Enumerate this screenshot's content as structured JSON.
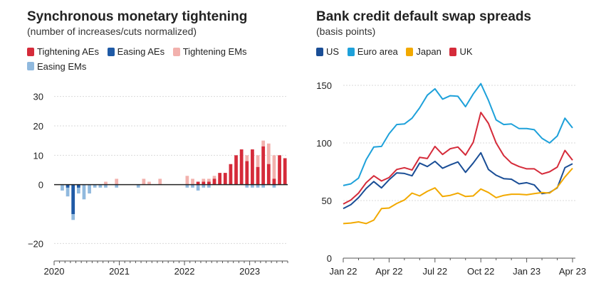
{
  "chart_data": [
    {
      "type": "bar",
      "title": "Synchronous monetary tightening",
      "subtitle": "(number of increases/cuts normalized)",
      "legend": [
        "Tightening AEs",
        "Easing AEs",
        "Tightening EMs",
        "Easing EMs"
      ],
      "colors": {
        "Tightening AEs": "#d52b3a",
        "Easing AEs": "#1f5aa6",
        "Tightening EMs": "#f2b1ad",
        "Easing EMs": "#90b9de"
      },
      "ylim": [
        -25,
        35
      ],
      "yticks": [
        30,
        20,
        10,
        0,
        -20
      ],
      "ytick_labels": [
        "30",
        "20",
        "10",
        "0",
        "−20"
      ],
      "x_tick_labels": [
        "2020",
        "2021",
        "2022",
        "2023"
      ],
      "start": "2020-01",
      "tightening_ae": [
        0,
        0,
        0,
        0,
        0,
        0,
        0,
        0,
        0,
        0,
        0,
        0,
        0,
        0,
        0,
        0,
        0,
        0,
        0,
        0,
        0,
        0,
        0,
        0,
        0,
        0,
        1,
        1,
        1,
        2,
        4,
        4,
        7,
        10,
        12,
        8,
        12,
        6,
        13,
        7,
        2,
        10,
        9
      ],
      "tightening_em": [
        0,
        0,
        0,
        0,
        0,
        0,
        0,
        0,
        0,
        1,
        0,
        2,
        0,
        0,
        0,
        0,
        2,
        1,
        0,
        2,
        0,
        0,
        0,
        0,
        3,
        2,
        1,
        2,
        2,
        3,
        2,
        4,
        4,
        5,
        7,
        10,
        11,
        10,
        15,
        14,
        10,
        7,
        4
      ],
      "easing_ae": [
        0,
        0,
        -1,
        -10,
        -1,
        0,
        0,
        0,
        0,
        0,
        0,
        0,
        0,
        0,
        0,
        0,
        0,
        0,
        0,
        0,
        0,
        0,
        0,
        0,
        0,
        0,
        0,
        0,
        0,
        0,
        0,
        0,
        0,
        0,
        0,
        0,
        0,
        0,
        0,
        0,
        0,
        0,
        0
      ],
      "easing_em": [
        0,
        -2,
        -4,
        -12,
        -3,
        -5,
        -3,
        -1,
        -1,
        -1,
        0,
        -1,
        0,
        0,
        0,
        -1,
        0,
        0,
        0,
        0,
        0,
        0,
        0,
        0,
        -1,
        -1,
        -2,
        -1,
        -1,
        0,
        0,
        0,
        0,
        0,
        0,
        -1,
        -1,
        -1,
        -1,
        0,
        -1,
        0,
        0
      ]
    },
    {
      "type": "line",
      "title": "Bank credit default swap spreads",
      "subtitle": "(basis points)",
      "legend": [
        "US",
        "Euro area",
        "Japan",
        "UK"
      ],
      "ylim": [
        0,
        150
      ],
      "yticks": [
        150,
        100,
        50,
        0
      ],
      "x_tick_labels": [
        "Jan 22",
        "Apr 22",
        "Jul 22",
        "Oct 22",
        "Jan 23",
        "Apr 23"
      ],
      "x_tick_months": [
        0,
        3,
        6,
        9,
        12,
        15
      ],
      "x": [
        0,
        0.5,
        1,
        1.5,
        2,
        2.5,
        3,
        3.5,
        4,
        4.5,
        5,
        5.5,
        6,
        6.5,
        7,
        7.5,
        8,
        8.5,
        9,
        9.5,
        10,
        10.5,
        11,
        11.5,
        12,
        12.5,
        13,
        13.5,
        14,
        14.5,
        15
      ],
      "series": [
        {
          "name": "US",
          "color": "#1a4e96",
          "values": [
            43,
            48,
            53,
            60,
            65,
            62,
            68,
            73,
            75,
            72,
            82,
            78,
            85,
            78,
            80,
            85,
            75,
            82,
            90,
            78,
            72,
            68,
            70,
            65,
            65,
            62,
            57,
            57,
            60,
            80,
            82
          ]
        },
        {
          "name": "Euro area",
          "color": "#1ea1da",
          "values": [
            63,
            66,
            70,
            85,
            95,
            98,
            108,
            115,
            118,
            122,
            130,
            140,
            148,
            138,
            140,
            142,
            132,
            142,
            150,
            138,
            120,
            115,
            118,
            113,
            112,
            110,
            105,
            100,
            105,
            123,
            113
          ]
        },
        {
          "name": "Japan",
          "color": "#f2a900",
          "values": [
            30,
            30,
            30,
            31,
            33,
            42,
            45,
            48,
            50,
            55,
            55,
            58,
            60,
            55,
            55,
            56,
            52,
            55,
            60,
            56,
            54,
            55,
            55,
            54,
            56,
            56,
            56,
            58,
            62,
            70,
            78
          ]
        },
        {
          "name": "UK",
          "color": "#d52b3a",
          "values": [
            47,
            52,
            57,
            65,
            70,
            68,
            70,
            76,
            80,
            77,
            87,
            85,
            98,
            90,
            94,
            98,
            90,
            100,
            125,
            118,
            100,
            88,
            84,
            80,
            77,
            76,
            74,
            75,
            78,
            95,
            85
          ]
        }
      ]
    }
  ]
}
